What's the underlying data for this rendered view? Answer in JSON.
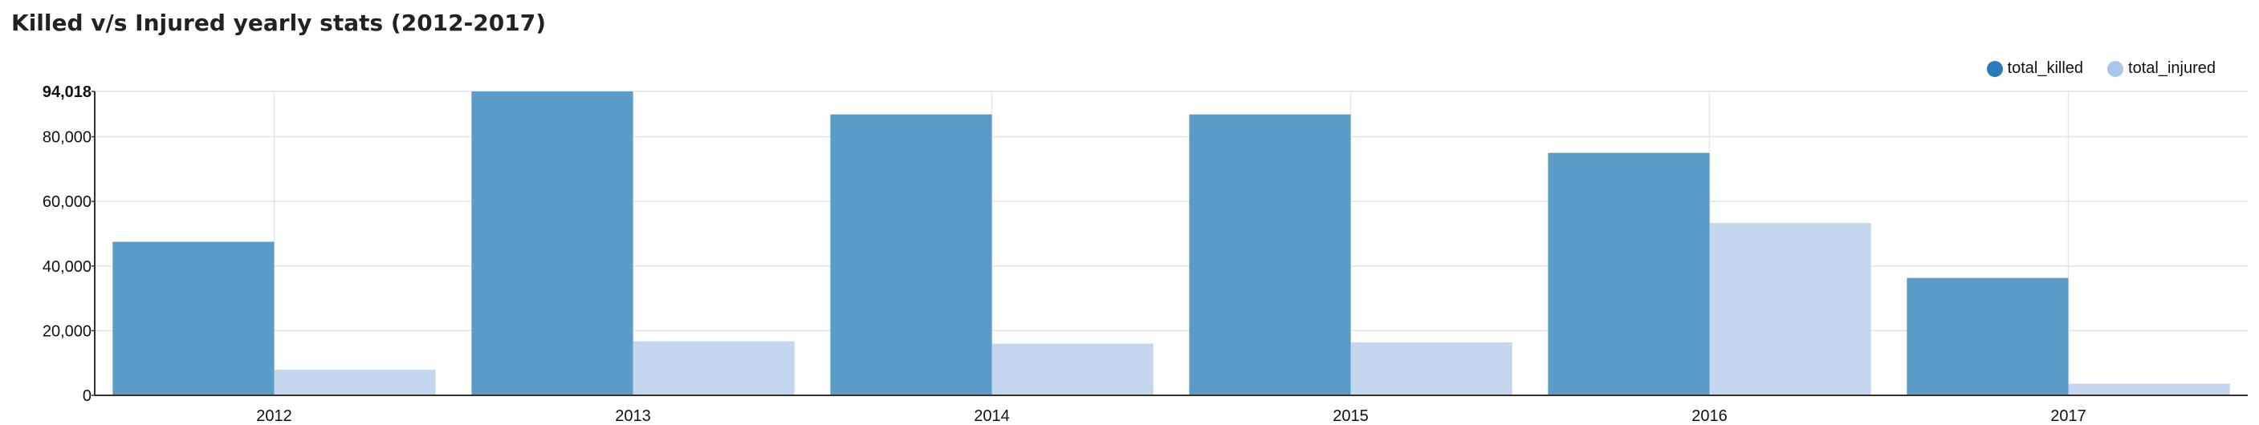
{
  "page": {
    "title": "Killed v/s Injured yearly stats (2012-2017)"
  },
  "chart_data": {
    "type": "bar",
    "title": "Killed v/s Injured yearly stats (2012-2017)",
    "xlabel": "",
    "ylabel": "",
    "categories": [
      "2012",
      "2013",
      "2014",
      "2015",
      "2016",
      "2017"
    ],
    "series": [
      {
        "name": "total_killed",
        "color": "#5b9bc8",
        "legend_color": "#2b7bbb",
        "values": [
          47500,
          94018,
          86900,
          86900,
          75000,
          36300
        ]
      },
      {
        "name": "total_injured",
        "color": "#c4d5ee",
        "legend_color": "#aac6e8",
        "values": [
          7900,
          16700,
          16000,
          16400,
          53300,
          3600
        ]
      }
    ],
    "ylim": [
      0,
      94018
    ],
    "yticks": [
      0,
      20000,
      40000,
      60000,
      80000,
      94018
    ],
    "ytick_labels": [
      "0",
      "20,000",
      "40,000",
      "60,000",
      "80,000",
      "94,018"
    ],
    "grid": true,
    "legend_position": "top-right"
  }
}
